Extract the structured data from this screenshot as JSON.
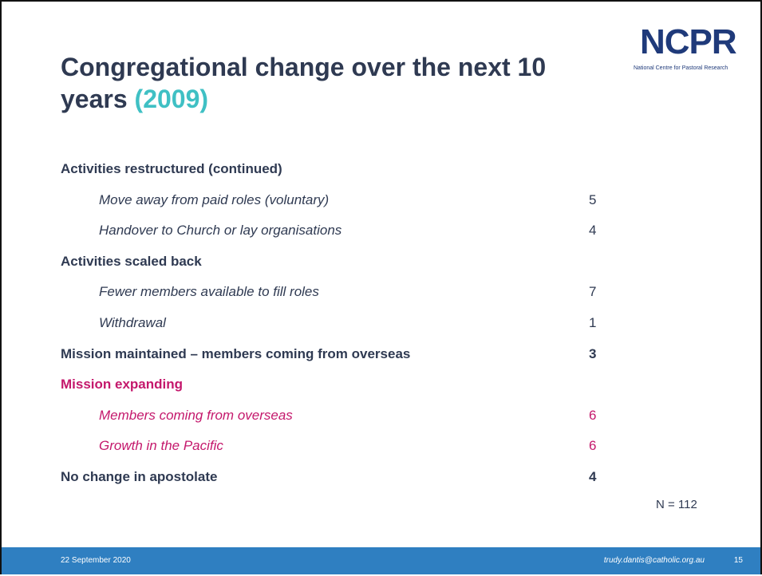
{
  "header": {
    "title": "Congregational change over the next 10 years",
    "year": "(2009)"
  },
  "logo": {
    "name": "NCPR",
    "subtitle": "National Centre for Pastoral Research"
  },
  "sections": [
    {
      "heading": "Activities restructured (continued)",
      "color": "#2f3a52",
      "items": [
        {
          "label": "Move away from paid roles (voluntary)",
          "value": 5
        },
        {
          "label": "Handover to Church or lay organisations",
          "value": 4
        }
      ]
    },
    {
      "heading": "Activities scaled back",
      "color": "#2f3a52",
      "items": [
        {
          "label": "Fewer members available to fill roles",
          "value": 7
        },
        {
          "label": "Withdrawal",
          "value": 1
        }
      ]
    },
    {
      "heading": "Mission maintained – members coming from overseas",
      "value": 3,
      "color": "#2f3a52",
      "items": []
    },
    {
      "heading": "Mission expanding",
      "color": "#c4186c",
      "items": [
        {
          "label": "Members coming from overseas",
          "value": 6
        },
        {
          "label": "Growth in the Pacific",
          "value": 6
        }
      ]
    },
    {
      "heading": "No change in apostolate",
      "value": 4,
      "color": "#2f3a52",
      "items": []
    }
  ],
  "note": "N = 112",
  "footer": {
    "date": "22 September 2020",
    "email": "trudy.dantis@catholic.org.au",
    "page": "15"
  }
}
